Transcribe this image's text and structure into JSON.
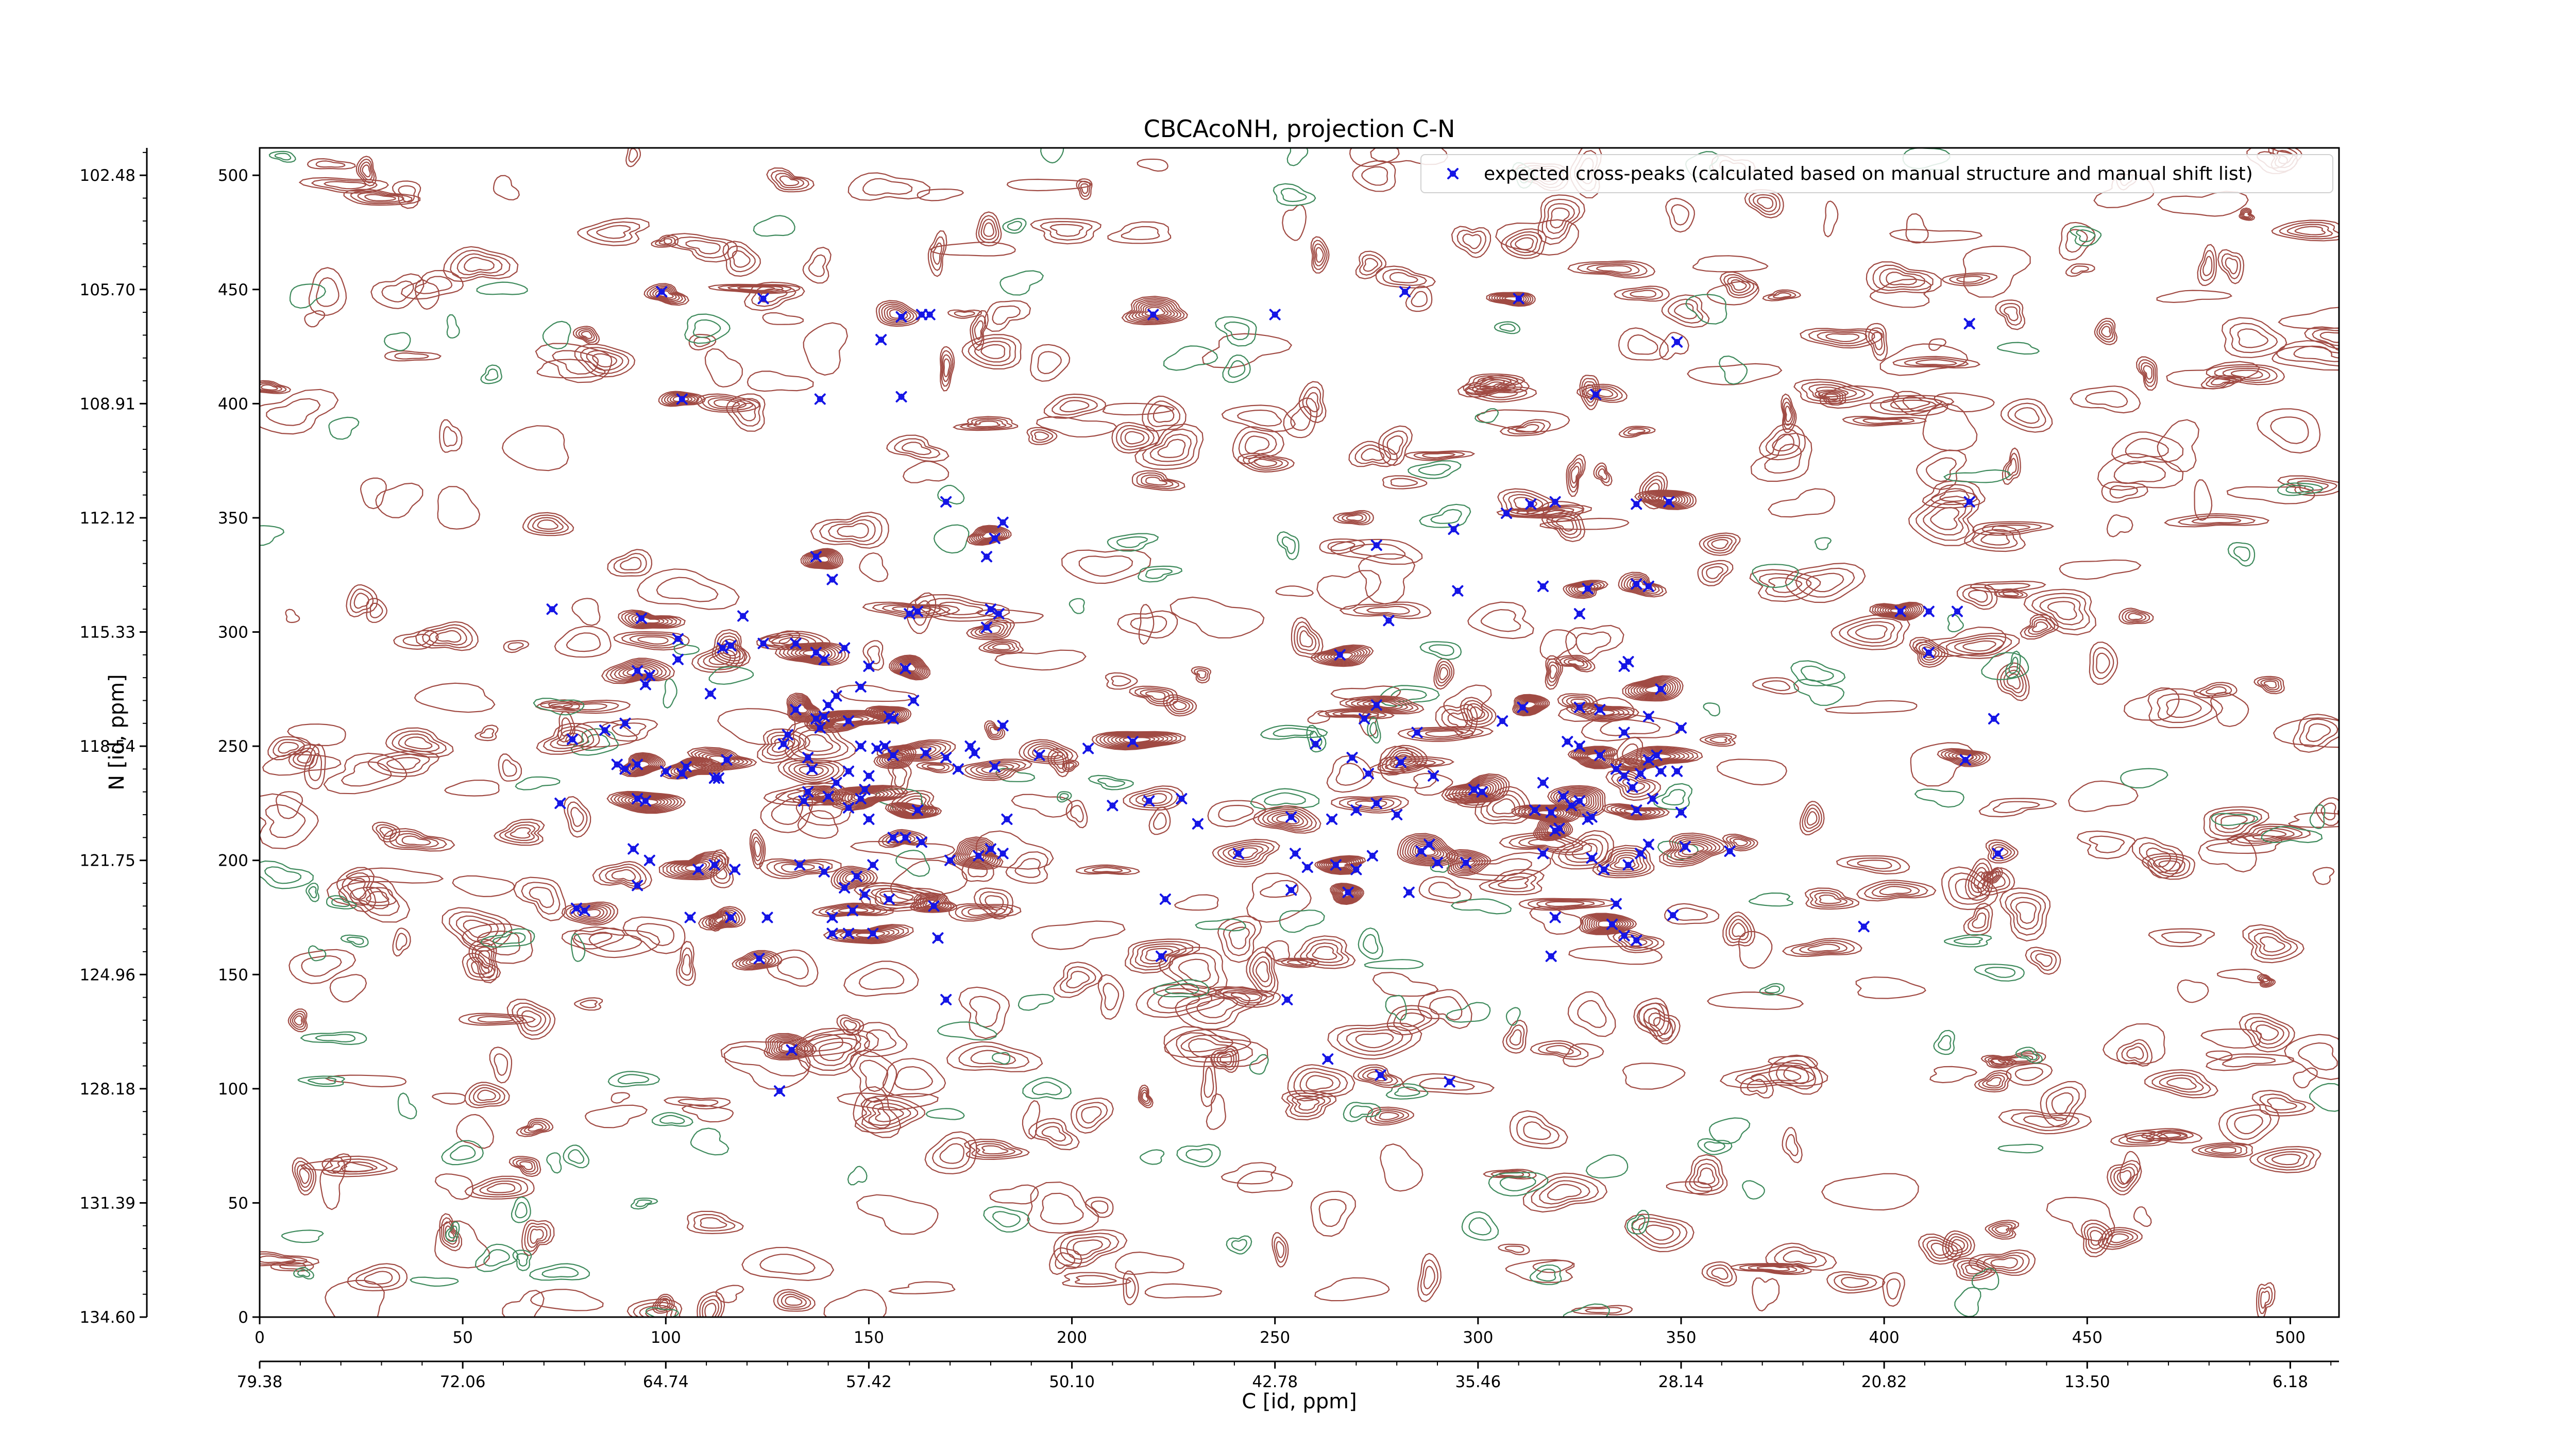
{
  "chart_data": {
    "type": "contour",
    "title": "CBCAcoNH, projection C-N",
    "xlabel": "C [id, ppm]",
    "ylabel": "N [id, ppm]",
    "x_index_range": [
      0,
      512
    ],
    "y_index_range": [
      0,
      512
    ],
    "x_index_ticks": [
      "0",
      "50",
      "100",
      "150",
      "200",
      "250",
      "300",
      "350",
      "400",
      "450",
      "500"
    ],
    "x_ppm_ticks": [
      "79.38",
      "72.06",
      "64.74",
      "57.42",
      "50.10",
      "42.78",
      "35.46",
      "28.14",
      "20.82",
      "13.50",
      "6.18"
    ],
    "y_index_ticks": [
      "0",
      "50",
      "100",
      "150",
      "200",
      "250",
      "300",
      "350",
      "400",
      "450",
      "500"
    ],
    "y_ppm_ticks": [
      "134.60",
      "131.39",
      "128.18",
      "124.96",
      "121.75",
      "118.54",
      "115.33",
      "112.12",
      "108.91",
      "105.70",
      "102.48"
    ],
    "legend": {
      "position": "top-right",
      "marker": "blue x-dot",
      "label": "expected cross-peaks (calculated based on manual structure and manual shift list)"
    },
    "colors": {
      "positive_contour": "#a04a43",
      "negative_contour": "#3e8a5c",
      "marker": "#1515e6",
      "frame": "#000000"
    },
    "series": [
      {
        "name": "expected cross-peaks (calculated based on manual structure and manual shift list)",
        "points": [
          [
            99,
            449
          ],
          [
            124,
            446
          ],
          [
            165,
            439
          ],
          [
            220,
            439
          ],
          [
            250,
            439
          ],
          [
            282,
            449
          ],
          [
            310,
            446
          ],
          [
            421,
            435
          ],
          [
            153,
            428
          ],
          [
            158,
            438
          ],
          [
            163,
            439
          ],
          [
            349,
            427
          ],
          [
            104,
            402
          ],
          [
            138,
            402
          ],
          [
            158,
            403
          ],
          [
            329,
            404
          ],
          [
            169,
            357
          ],
          [
            307,
            352
          ],
          [
            313,
            356
          ],
          [
            319,
            357
          ],
          [
            339,
            356
          ],
          [
            347,
            357
          ],
          [
            421,
            357
          ],
          [
            294,
            345
          ],
          [
            181,
            341
          ],
          [
            183,
            348
          ],
          [
            275,
            338
          ],
          [
            137,
            333
          ],
          [
            141,
            323
          ],
          [
            179,
            333
          ],
          [
            94,
            306
          ],
          [
            119,
            307
          ],
          [
            160,
            308
          ],
          [
            162,
            309
          ],
          [
            180,
            310
          ],
          [
            182,
            308
          ],
          [
            179,
            302
          ],
          [
            295,
            318
          ],
          [
            316,
            320
          ],
          [
            327,
            319
          ],
          [
            342,
            320
          ],
          [
            325,
            308
          ],
          [
            339,
            321
          ],
          [
            278,
            305
          ],
          [
            72,
            310
          ],
          [
            404,
            309
          ],
          [
            411,
            309
          ],
          [
            418,
            309
          ],
          [
            411,
            291
          ],
          [
            103,
            288
          ],
          [
            103,
            297
          ],
          [
            114,
            293
          ],
          [
            116,
            294
          ],
          [
            124,
            295
          ],
          [
            132,
            295
          ],
          [
            144,
            293
          ],
          [
            150,
            285
          ],
          [
            266,
            290
          ],
          [
            336,
            285
          ],
          [
            337,
            287
          ],
          [
            93,
            283
          ],
          [
            95,
            277
          ],
          [
            96,
            281
          ],
          [
            137,
            291
          ],
          [
            139,
            288
          ],
          [
            148,
            276
          ],
          [
            159,
            284
          ],
          [
            161,
            270
          ],
          [
            111,
            273
          ],
          [
            132,
            266
          ],
          [
            137,
            262
          ],
          [
            138,
            258
          ],
          [
            139,
            263
          ],
          [
            140,
            268
          ],
          [
            142,
            272
          ],
          [
            145,
            261
          ],
          [
            148,
            250
          ],
          [
            152,
            249
          ],
          [
            155,
            263
          ],
          [
            156,
            262
          ],
          [
            154,
            250
          ],
          [
            164,
            247
          ],
          [
            176,
            247
          ],
          [
            204,
            249
          ],
          [
            215,
            252
          ],
          [
            260,
            251
          ],
          [
            272,
            262
          ],
          [
            275,
            268
          ],
          [
            285,
            256
          ],
          [
            306,
            261
          ],
          [
            311,
            267
          ],
          [
            322,
            252
          ],
          [
            325,
            267
          ],
          [
            330,
            266
          ],
          [
            336,
            256
          ],
          [
            342,
            263
          ],
          [
            345,
            275
          ],
          [
            350,
            258
          ],
          [
            427,
            262
          ],
          [
            77,
            253
          ],
          [
            85,
            257
          ],
          [
            90,
            260
          ],
          [
            129,
            251
          ],
          [
            130,
            255
          ],
          [
            135,
            245
          ],
          [
            136,
            240
          ],
          [
            145,
            239
          ],
          [
            150,
            237
          ],
          [
            156,
            246
          ],
          [
            169,
            245
          ],
          [
            175,
            250
          ],
          [
            181,
            241
          ],
          [
            183,
            259
          ],
          [
            172,
            240
          ],
          [
            192,
            246
          ],
          [
            269,
            245
          ],
          [
            273,
            238
          ],
          [
            281,
            243
          ],
          [
            289,
            237
          ],
          [
            299,
            231
          ],
          [
            301,
            230
          ],
          [
            316,
            234
          ],
          [
            325,
            250
          ],
          [
            330,
            246
          ],
          [
            334,
            240
          ],
          [
            336,
            237
          ],
          [
            338,
            232
          ],
          [
            340,
            238
          ],
          [
            342,
            244
          ],
          [
            344,
            246
          ],
          [
            345,
            239
          ],
          [
            349,
            239
          ],
          [
            420,
            244
          ],
          [
            88,
            242
          ],
          [
            90,
            240
          ],
          [
            93,
            242
          ],
          [
            100,
            239
          ],
          [
            104,
            238
          ],
          [
            105,
            241
          ],
          [
            112,
            236
          ],
          [
            113,
            236
          ],
          [
            115,
            244
          ],
          [
            74,
            225
          ],
          [
            93,
            227
          ],
          [
            95,
            226
          ],
          [
            134,
            226
          ],
          [
            135,
            230
          ],
          [
            140,
            228
          ],
          [
            142,
            234
          ],
          [
            145,
            223
          ],
          [
            148,
            227
          ],
          [
            149,
            231
          ],
          [
            150,
            218
          ],
          [
            162,
            222
          ],
          [
            184,
            218
          ],
          [
            210,
            224
          ],
          [
            219,
            226
          ],
          [
            227,
            227
          ],
          [
            231,
            216
          ],
          [
            254,
            219
          ],
          [
            264,
            218
          ],
          [
            270,
            222
          ],
          [
            275,
            225
          ],
          [
            280,
            220
          ],
          [
            314,
            222
          ],
          [
            318,
            221
          ],
          [
            321,
            228
          ],
          [
            323,
            224
          ],
          [
            325,
            226
          ],
          [
            327,
            218
          ],
          [
            328,
            219
          ],
          [
            339,
            222
          ],
          [
            343,
            227
          ],
          [
            350,
            221
          ],
          [
            428,
            203
          ],
          [
            92,
            205
          ],
          [
            96,
            200
          ],
          [
            108,
            196
          ],
          [
            112,
            198
          ],
          [
            117,
            196
          ],
          [
            133,
            198
          ],
          [
            139,
            195
          ],
          [
            144,
            188
          ],
          [
            147,
            193
          ],
          [
            151,
            198
          ],
          [
            156,
            210
          ],
          [
            159,
            210
          ],
          [
            163,
            208
          ],
          [
            170,
            200
          ],
          [
            177,
            202
          ],
          [
            180,
            205
          ],
          [
            183,
            203
          ],
          [
            241,
            203
          ],
          [
            255,
            203
          ],
          [
            258,
            197
          ],
          [
            265,
            198
          ],
          [
            270,
            196
          ],
          [
            274,
            202
          ],
          [
            286,
            204
          ],
          [
            288,
            207
          ],
          [
            290,
            199
          ],
          [
            297,
            199
          ],
          [
            316,
            203
          ],
          [
            319,
            213
          ],
          [
            320,
            214
          ],
          [
            328,
            201
          ],
          [
            331,
            196
          ],
          [
            337,
            198
          ],
          [
            340,
            203
          ],
          [
            342,
            207
          ],
          [
            351,
            206
          ],
          [
            362,
            204
          ],
          [
            78,
            179
          ],
          [
            80,
            178
          ],
          [
            93,
            189
          ],
          [
            106,
            175
          ],
          [
            116,
            175
          ],
          [
            125,
            175
          ],
          [
            141,
            175
          ],
          [
            146,
            178
          ],
          [
            149,
            185
          ],
          [
            155,
            183
          ],
          [
            166,
            180
          ],
          [
            223,
            183
          ],
          [
            254,
            187
          ],
          [
            268,
            186
          ],
          [
            283,
            186
          ],
          [
            319,
            175
          ],
          [
            333,
            172
          ],
          [
            334,
            181
          ],
          [
            336,
            167
          ],
          [
            339,
            165
          ],
          [
            348,
            176
          ],
          [
            395,
            171
          ],
          [
            123,
            157
          ],
          [
            141,
            168
          ],
          [
            145,
            168
          ],
          [
            151,
            168
          ],
          [
            167,
            166
          ],
          [
            169,
            139
          ],
          [
            222,
            158
          ],
          [
            253,
            139
          ],
          [
            318,
            158
          ],
          [
            131,
            117
          ],
          [
            128,
            99
          ],
          [
            263,
            113
          ],
          [
            276,
            106
          ],
          [
            293,
            103
          ]
        ]
      }
    ]
  }
}
